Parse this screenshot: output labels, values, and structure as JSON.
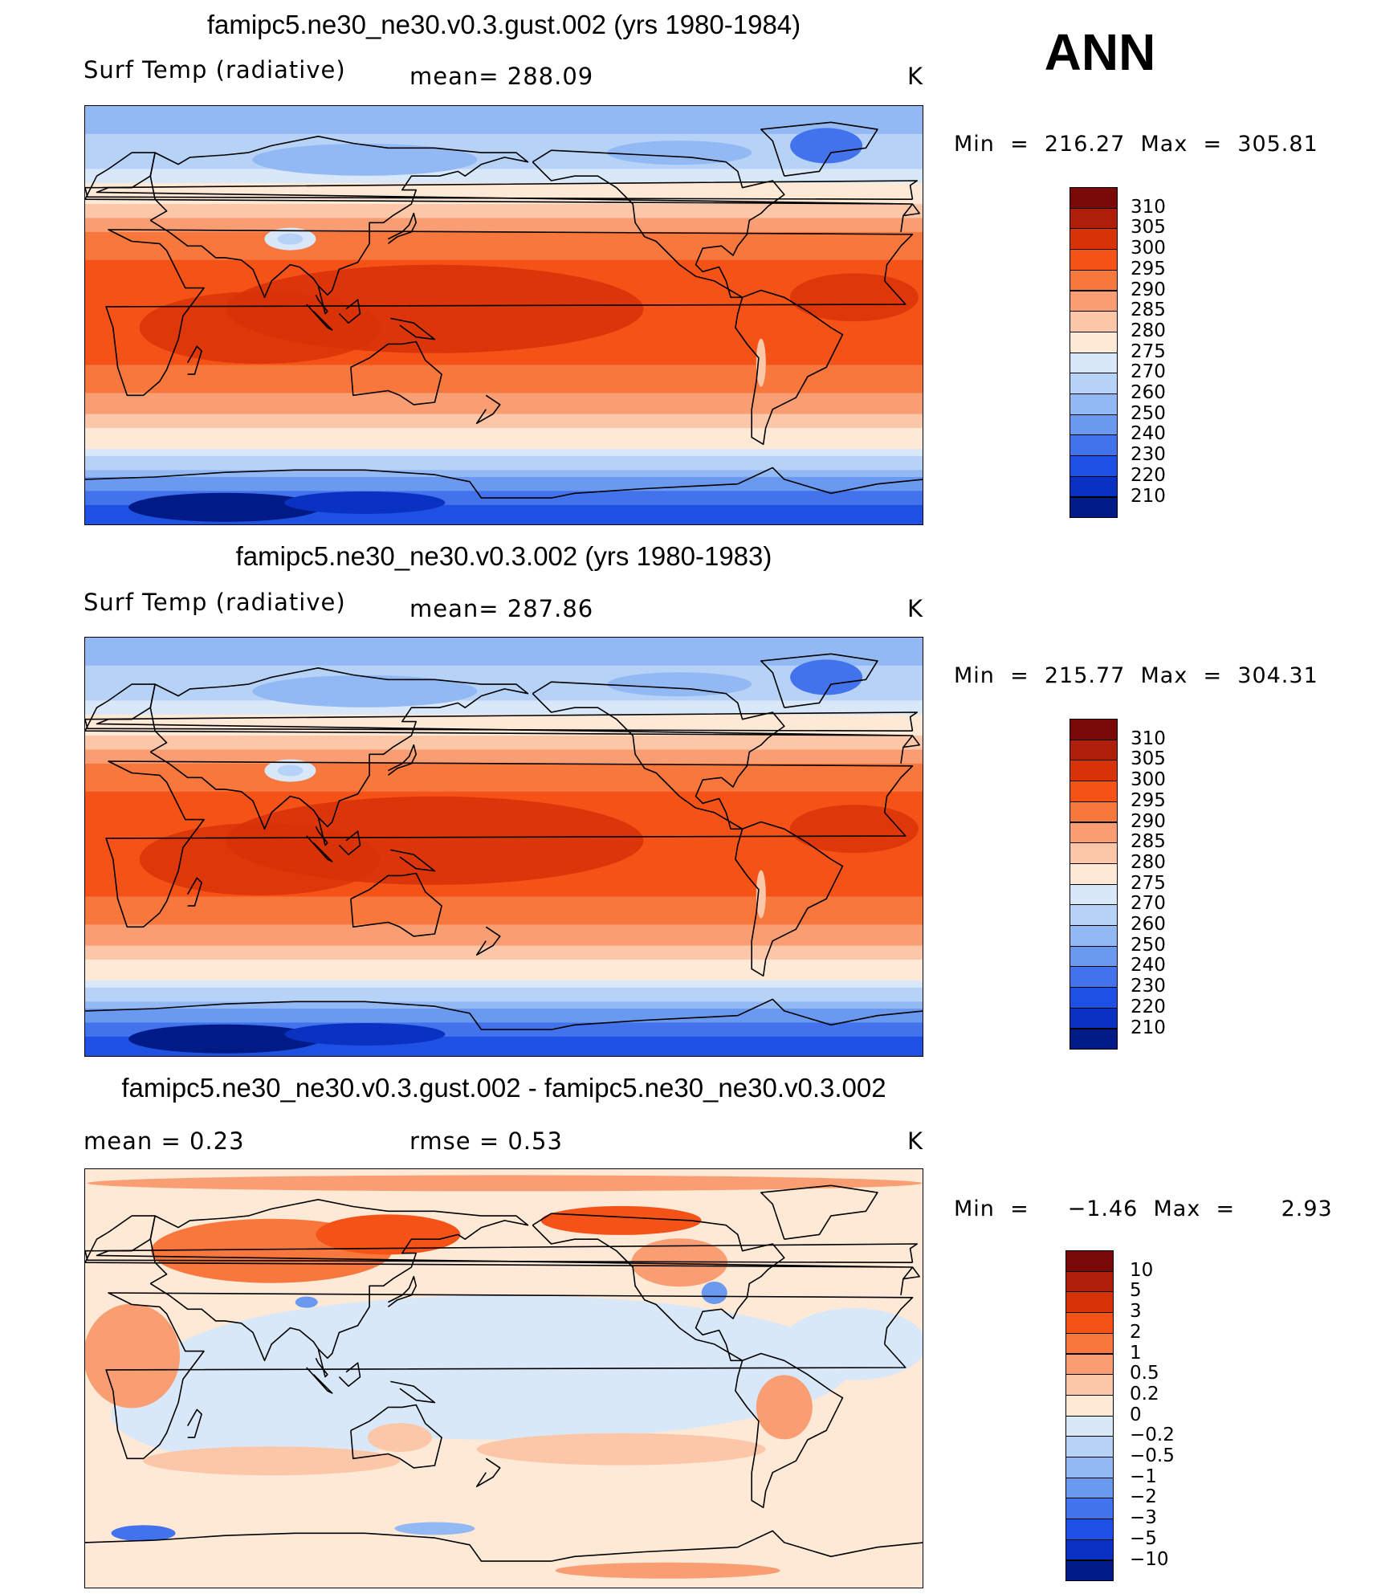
{
  "season": "ANN",
  "units": "K",
  "panels": [
    {
      "title": "famipc5.ne30_ne30.v0.3.gust.002 (yrs 1980-1984)",
      "left_label": "Surf Temp (radiative)",
      "center_label": "mean=  288.09",
      "right_label": "K",
      "minmax": "Min  =  216.27  Max  =  305.81"
    },
    {
      "title": "famipc5.ne30_ne30.v0.3.002 (yrs 1980-1983)",
      "left_label": "Surf Temp (radiative)",
      "center_label": "mean=  287.86",
      "right_label": "K",
      "minmax": "Min  =  215.77  Max  =  304.31"
    },
    {
      "title": "famipc5.ne30_ne30.v0.3.gust.002 - famipc5.ne30_ne30.v0.3.002",
      "left_label": "mean  =      0.23",
      "center_label": "rmse  =      0.53",
      "right_label": "K",
      "minmax": "Min  =     −1.46  Max  =      2.93"
    }
  ],
  "colorbar_abs": {
    "levels": [
      "310",
      "305",
      "300",
      "295",
      "290",
      "285",
      "280",
      "275",
      "270",
      "260",
      "250",
      "240",
      "230",
      "220",
      "210"
    ],
    "colors": [
      "#7a0a08",
      "#ad1f0a",
      "#d83208",
      "#f45217",
      "#f7773d",
      "#f99d72",
      "#fcc7a9",
      "#fde9d6",
      "#d9e8f8",
      "#b7d2f7",
      "#93b9f5",
      "#6a99f0",
      "#4273ec",
      "#1e50e4",
      "#0a32c2",
      "#001a86"
    ]
  },
  "colorbar_diff": {
    "levels": [
      "10",
      "5",
      "3",
      "2",
      "1",
      "0.5",
      "0.2",
      "0",
      "−0.2",
      "−0.5",
      "−1",
      "−2",
      "−3",
      "−5",
      "−10"
    ],
    "colors": [
      "#7a0a08",
      "#ad1f0a",
      "#d83208",
      "#f45217",
      "#f7773d",
      "#f99d72",
      "#fcc7a9",
      "#fde9d6",
      "#d9e8f8",
      "#b7d2f7",
      "#93b9f5",
      "#6a99f0",
      "#4273ec",
      "#1e50e4",
      "#0a32c2",
      "#001a86"
    ]
  },
  "map_data": {
    "type": "contour-map",
    "projection": "cylindrical equidistant, centered 180",
    "variable": "Surf Temp (radiative)",
    "lat_band_means_panel1": [
      {
        "lat": 90,
        "value": 253
      },
      {
        "lat": 75,
        "value": 262
      },
      {
        "lat": 60,
        "value": 272
      },
      {
        "lat": 45,
        "value": 283
      },
      {
        "lat": 30,
        "value": 293
      },
      {
        "lat": 15,
        "value": 299
      },
      {
        "lat": 0,
        "value": 300
      },
      {
        "lat": -15,
        "value": 298
      },
      {
        "lat": -30,
        "value": 291
      },
      {
        "lat": -45,
        "value": 283
      },
      {
        "lat": -60,
        "value": 272
      },
      {
        "lat": -70,
        "value": 250
      },
      {
        "lat": -80,
        "value": 230
      },
      {
        "lat": -90,
        "value": 225
      }
    ],
    "lat_band_means_panel2": [
      {
        "lat": 90,
        "value": 252
      },
      {
        "lat": 75,
        "value": 261
      },
      {
        "lat": 60,
        "value": 272
      },
      {
        "lat": 45,
        "value": 283
      },
      {
        "lat": 30,
        "value": 293
      },
      {
        "lat": 15,
        "value": 299
      },
      {
        "lat": 0,
        "value": 300
      },
      {
        "lat": -15,
        "value": 298
      },
      {
        "lat": -30,
        "value": 291
      },
      {
        "lat": -45,
        "value": 283
      },
      {
        "lat": -60,
        "value": 272
      },
      {
        "lat": -70,
        "value": 249
      },
      {
        "lat": -80,
        "value": 229
      },
      {
        "lat": -90,
        "value": 224
      }
    ]
  }
}
